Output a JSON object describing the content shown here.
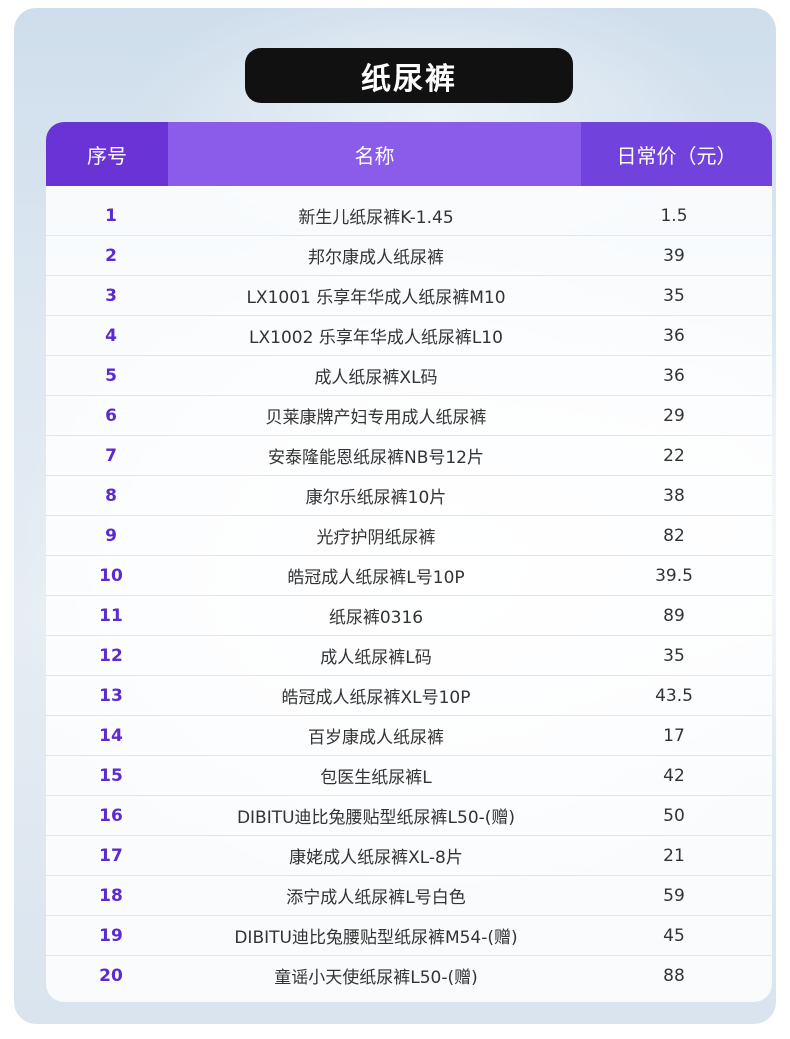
{
  "title": "纸尿裤",
  "table": {
    "headers": {
      "no": "序号",
      "name": "名称",
      "price": "日常价（元）"
    },
    "rows": [
      {
        "no": "1",
        "name": "新生儿纸尿裤K-1.45",
        "price": "1.5"
      },
      {
        "no": "2",
        "name": "邦尔康成人纸尿裤",
        "price": "39"
      },
      {
        "no": "3",
        "name": "LX1001 乐享年华成人纸尿裤M10",
        "price": "35"
      },
      {
        "no": "4",
        "name": "LX1002 乐享年华成人纸尿裤L10",
        "price": "36"
      },
      {
        "no": "5",
        "name": "成人纸尿裤XL码",
        "price": "36"
      },
      {
        "no": "6",
        "name": "贝莱康牌产妇专用成人纸尿裤",
        "price": "29"
      },
      {
        "no": "7",
        "name": "安泰隆能恩纸尿裤NB号12片",
        "price": "22"
      },
      {
        "no": "8",
        "name": "康尔乐纸尿裤10片",
        "price": "38"
      },
      {
        "no": "9",
        "name": "光疗护阴纸尿裤",
        "price": "82"
      },
      {
        "no": "10",
        "name": "皓冠成人纸尿裤L号10P",
        "price": "39.5"
      },
      {
        "no": "11",
        "name": "纸尿裤0316",
        "price": "89"
      },
      {
        "no": "12",
        "name": "成人纸尿裤L码",
        "price": "35"
      },
      {
        "no": "13",
        "name": "皓冠成人纸尿裤XL号10P",
        "price": "43.5"
      },
      {
        "no": "14",
        "name": "百岁康成人纸尿裤",
        "price": "17"
      },
      {
        "no": "15",
        "name": "包医生纸尿裤L",
        "price": "42"
      },
      {
        "no": "16",
        "name": "DIBITU迪比兔腰贴型纸尿裤L50-(赠)",
        "price": "50"
      },
      {
        "no": "17",
        "name": "康姥成人纸尿裤XL-8片",
        "price": "21"
      },
      {
        "no": "18",
        "name": "添宁成人纸尿裤L号白色",
        "price": "59"
      },
      {
        "no": "19",
        "name": "DIBITU迪比兔腰贴型纸尿裤M54-(赠)",
        "price": "45"
      },
      {
        "no": "20",
        "name": "童谣小天使纸尿裤L50-(赠)",
        "price": "88"
      }
    ]
  },
  "colors": {
    "header_dark": "#6a33d6",
    "header_light": "#8a5ce9",
    "number_text": "#5b2bcb",
    "title_bg": "#111111"
  }
}
